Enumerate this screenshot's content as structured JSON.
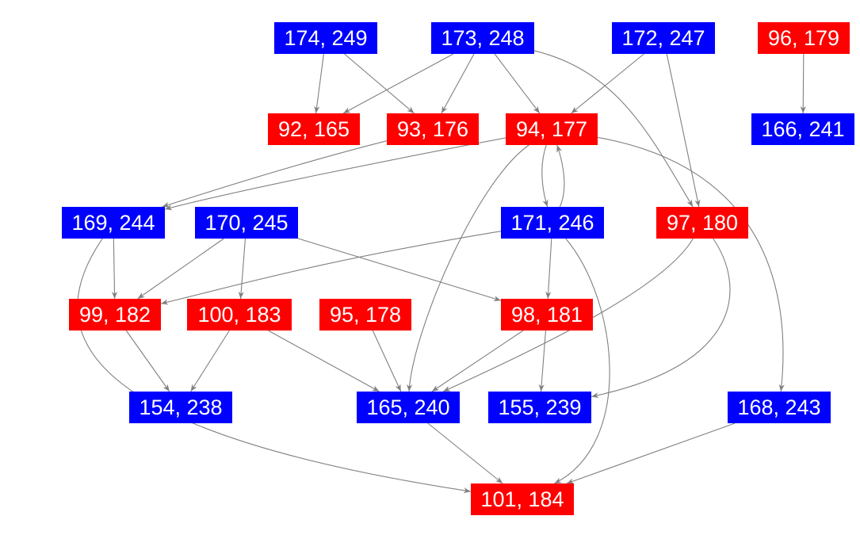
{
  "colors": {
    "blue": "#0000ff",
    "red": "#ff0000",
    "edge": "#808080",
    "text": "#ffffff"
  },
  "nodes": [
    {
      "id": "174_249",
      "label": "174, 249",
      "color": "blue"
    },
    {
      "id": "173_248",
      "label": "173, 248",
      "color": "blue"
    },
    {
      "id": "172_247",
      "label": "172, 247",
      "color": "blue"
    },
    {
      "id": "96_179",
      "label": "96, 179",
      "color": "red"
    },
    {
      "id": "92_165",
      "label": "92, 165",
      "color": "red"
    },
    {
      "id": "93_176",
      "label": "93, 176",
      "color": "red"
    },
    {
      "id": "94_177",
      "label": "94, 177",
      "color": "red"
    },
    {
      "id": "166_241",
      "label": "166, 241",
      "color": "blue"
    },
    {
      "id": "169_244",
      "label": "169, 244",
      "color": "blue"
    },
    {
      "id": "170_245",
      "label": "170, 245",
      "color": "blue"
    },
    {
      "id": "171_246",
      "label": "171, 246",
      "color": "blue"
    },
    {
      "id": "97_180",
      "label": "97, 180",
      "color": "red"
    },
    {
      "id": "99_182",
      "label": "99, 182",
      "color": "red"
    },
    {
      "id": "100_183",
      "label": "100, 183",
      "color": "red"
    },
    {
      "id": "95_178",
      "label": "95, 178",
      "color": "red"
    },
    {
      "id": "98_181",
      "label": "98, 181",
      "color": "red"
    },
    {
      "id": "154_238",
      "label": "154, 238",
      "color": "blue"
    },
    {
      "id": "165_240",
      "label": "165, 240",
      "color": "blue"
    },
    {
      "id": "155_239",
      "label": "155, 239",
      "color": "blue"
    },
    {
      "id": "168_243",
      "label": "168, 243",
      "color": "blue"
    },
    {
      "id": "101_184",
      "label": "101, 184",
      "color": "red"
    }
  ],
  "edges": [
    {
      "from": "174_249",
      "to": "92_165"
    },
    {
      "from": "174_249",
      "to": "93_176"
    },
    {
      "from": "173_248",
      "to": "92_165"
    },
    {
      "from": "173_248",
      "to": "93_176"
    },
    {
      "from": "173_248",
      "to": "94_177"
    },
    {
      "from": "173_248",
      "to": "97_180"
    },
    {
      "from": "172_247",
      "to": "94_177"
    },
    {
      "from": "172_247",
      "to": "97_180"
    },
    {
      "from": "96_179",
      "to": "166_241"
    },
    {
      "from": "93_176",
      "to": "169_244"
    },
    {
      "from": "94_177",
      "to": "169_244"
    },
    {
      "from": "94_177",
      "to": "171_246"
    },
    {
      "from": "171_246",
      "to": "94_177"
    },
    {
      "from": "94_177",
      "to": "165_240"
    },
    {
      "from": "94_177",
      "to": "168_243"
    },
    {
      "from": "169_244",
      "to": "99_182"
    },
    {
      "from": "169_244",
      "to": "101_184"
    },
    {
      "from": "170_245",
      "to": "99_182"
    },
    {
      "from": "170_245",
      "to": "100_183"
    },
    {
      "from": "170_245",
      "to": "98_181"
    },
    {
      "from": "171_246",
      "to": "99_182"
    },
    {
      "from": "171_246",
      "to": "98_181"
    },
    {
      "from": "171_246",
      "to": "101_184"
    },
    {
      "from": "97_180",
      "to": "165_240"
    },
    {
      "from": "97_180",
      "to": "155_239"
    },
    {
      "from": "99_182",
      "to": "154_238"
    },
    {
      "from": "100_183",
      "to": "154_238"
    },
    {
      "from": "100_183",
      "to": "165_240"
    },
    {
      "from": "95_178",
      "to": "165_240"
    },
    {
      "from": "98_181",
      "to": "165_240"
    },
    {
      "from": "98_181",
      "to": "155_239"
    },
    {
      "from": "165_240",
      "to": "101_184"
    },
    {
      "from": "168_243",
      "to": "101_184"
    }
  ]
}
